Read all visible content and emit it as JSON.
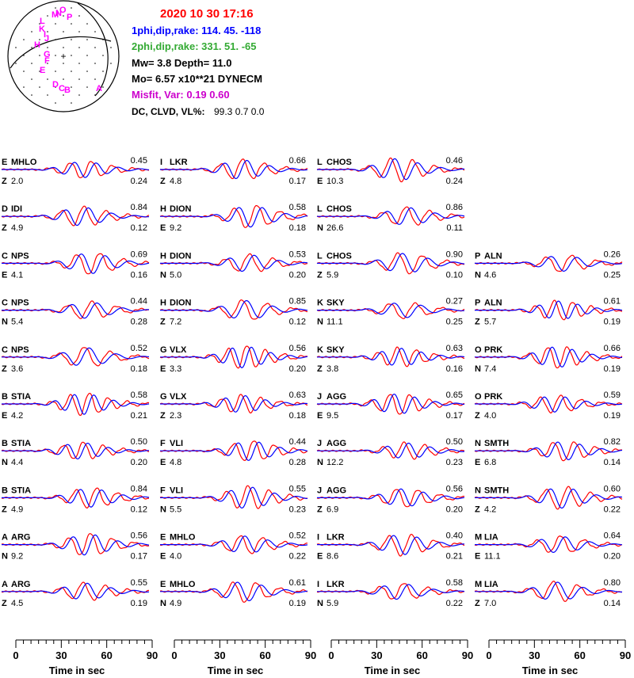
{
  "header": {
    "date_time": "2020 10 30    17:16",
    "plane1": "1phi,dip,rake: 114. 45. -118",
    "plane2": "2phi,dip,rake: 331. 51.  -65",
    "mw_depth": "Mw=  3.8    Depth=    11.0",
    "moment": "Mo=  6.57 x10**21 DYNECM",
    "misfit": "Misfit, Var:     0.19      0.60",
    "dc_clvd_label": "DC, CLVD, VL%:",
    "dc_clvd_values": "99.3     0.7     0.0"
  },
  "colors": {
    "title": "#ff0000",
    "plane1": "#0000ff",
    "plane2": "#33aa33",
    "misfit": "#cc00cc",
    "observed": "#ff0000",
    "synthetic": "#0000ff",
    "station_labels": "#ff00ff"
  },
  "beachball": {
    "station_labels": [
      "L",
      "M",
      "O",
      "P",
      "K",
      "J",
      "H",
      "G",
      "F",
      "E",
      "D",
      "C",
      "B",
      "A",
      "I",
      "N"
    ]
  },
  "chart_data": {
    "type": "line",
    "description_free": true,
    "x_range": [
      0,
      90
    ],
    "x_ticks": [
      0,
      30,
      60,
      90
    ],
    "x_label": "Time  in sec",
    "series": "observed (red) vs synthetic (blue) waveforms",
    "columns": [
      [
        {
          "site": "E",
          "station": "MHLO",
          "comp": "Z",
          "dist": "2.0",
          "corr": "0.45",
          "shift": "0.24"
        },
        {
          "site": "D",
          "station": "IDI",
          "comp": "Z",
          "dist": "4.9",
          "corr": "0.84",
          "shift": "0.12"
        },
        {
          "site": "C",
          "station": "NPS",
          "comp": "E",
          "dist": "4.1",
          "corr": "0.69",
          "shift": "0.16"
        },
        {
          "site": "C",
          "station": "NPS",
          "comp": "N",
          "dist": "5.4",
          "corr": "0.44",
          "shift": "0.28"
        },
        {
          "site": "C",
          "station": "NPS",
          "comp": "Z",
          "dist": "3.6",
          "corr": "0.52",
          "shift": "0.18"
        },
        {
          "site": "B",
          "station": "STIA",
          "comp": "E",
          "dist": "4.2",
          "corr": "0.58",
          "shift": "0.21"
        },
        {
          "site": "B",
          "station": "STIA",
          "comp": "N",
          "dist": "4.4",
          "corr": "0.50",
          "shift": "0.20"
        },
        {
          "site": "B",
          "station": "STIA",
          "comp": "Z",
          "dist": "4.9",
          "corr": "0.84",
          "shift": "0.12"
        },
        {
          "site": "A",
          "station": "ARG",
          "comp": "N",
          "dist": "9.2",
          "corr": "0.56",
          "shift": "0.17"
        },
        {
          "site": "A",
          "station": "ARG",
          "comp": "Z",
          "dist": "4.5",
          "corr": "0.55",
          "shift": "0.19"
        }
      ],
      [
        {
          "site": "I",
          "station": "LKR",
          "comp": "Z",
          "dist": "4.8",
          "corr": "0.66",
          "shift": "0.17"
        },
        {
          "site": "H",
          "station": "DION",
          "comp": "E",
          "dist": "9.2",
          "corr": "0.58",
          "shift": "0.18"
        },
        {
          "site": "H",
          "station": "DION",
          "comp": "N",
          "dist": "5.0",
          "corr": "0.53",
          "shift": "0.20"
        },
        {
          "site": "H",
          "station": "DION",
          "comp": "Z",
          "dist": "7.2",
          "corr": "0.85",
          "shift": "0.12"
        },
        {
          "site": "G",
          "station": "VLX",
          "comp": "E",
          "dist": "3.3",
          "corr": "0.56",
          "shift": "0.20"
        },
        {
          "site": "G",
          "station": "VLX",
          "comp": "Z",
          "dist": "2.3",
          "corr": "0.63",
          "shift": "0.18"
        },
        {
          "site": "F",
          "station": "VLI",
          "comp": "E",
          "dist": "4.8",
          "corr": "0.44",
          "shift": "0.28"
        },
        {
          "site": "F",
          "station": "VLI",
          "comp": "N",
          "dist": "5.5",
          "corr": "0.55",
          "shift": "0.23"
        },
        {
          "site": "E",
          "station": "MHLO",
          "comp": "E",
          "dist": "4.0",
          "corr": "0.52",
          "shift": "0.22"
        },
        {
          "site": "E",
          "station": "MHLO",
          "comp": "N",
          "dist": "4.9",
          "corr": "0.61",
          "shift": "0.19"
        }
      ],
      [
        {
          "site": "L",
          "station": "CHOS",
          "comp": "E",
          "dist": "10.3",
          "corr": "0.46",
          "shift": "0.24"
        },
        {
          "site": "L",
          "station": "CHOS",
          "comp": "N",
          "dist": "26.6",
          "corr": "0.86",
          "shift": "0.11"
        },
        {
          "site": "L",
          "station": "CHOS",
          "comp": "Z",
          "dist": "5.9",
          "corr": "0.90",
          "shift": "0.10"
        },
        {
          "site": "K",
          "station": "SKY",
          "comp": "N",
          "dist": "11.1",
          "corr": "0.27",
          "shift": "0.25"
        },
        {
          "site": "K",
          "station": "SKY",
          "comp": "Z",
          "dist": "3.8",
          "corr": "0.63",
          "shift": "0.16"
        },
        {
          "site": "J",
          "station": "AGG",
          "comp": "E",
          "dist": "9.5",
          "corr": "0.65",
          "shift": "0.17"
        },
        {
          "site": "J",
          "station": "AGG",
          "comp": "N",
          "dist": "12.2",
          "corr": "0.50",
          "shift": "0.23"
        },
        {
          "site": "J",
          "station": "AGG",
          "comp": "Z",
          "dist": "6.9",
          "corr": "0.56",
          "shift": "0.20"
        },
        {
          "site": "I",
          "station": "LKR",
          "comp": "E",
          "dist": "8.6",
          "corr": "0.40",
          "shift": "0.21"
        },
        {
          "site": "I",
          "station": "LKR",
          "comp": "N",
          "dist": "5.9",
          "corr": "0.58",
          "shift": "0.22"
        }
      ],
      [
        null,
        null,
        {
          "site": "P",
          "station": "ALN",
          "comp": "N",
          "dist": "4.6",
          "corr": "0.26",
          "shift": "0.25"
        },
        {
          "site": "P",
          "station": "ALN",
          "comp": "Z",
          "dist": "5.7",
          "corr": "0.61",
          "shift": "0.19"
        },
        {
          "site": "O",
          "station": "PRK",
          "comp": "N",
          "dist": "7.4",
          "corr": "0.66",
          "shift": "0.19"
        },
        {
          "site": "O",
          "station": "PRK",
          "comp": "Z",
          "dist": "4.0",
          "corr": "0.59",
          "shift": "0.19"
        },
        {
          "site": "N",
          "station": "SMTH",
          "comp": "E",
          "dist": "6.8",
          "corr": "0.82",
          "shift": "0.14"
        },
        {
          "site": "N",
          "station": "SMTH",
          "comp": "Z",
          "dist": "4.2",
          "corr": "0.60",
          "shift": "0.22"
        },
        {
          "site": "M",
          "station": "LIA",
          "comp": "E",
          "dist": "11.1",
          "corr": "0.64",
          "shift": "0.20"
        },
        {
          "site": "M",
          "station": "LIA",
          "comp": "Z",
          "dist": "7.0",
          "corr": "0.80",
          "shift": "0.14"
        }
      ]
    ]
  }
}
